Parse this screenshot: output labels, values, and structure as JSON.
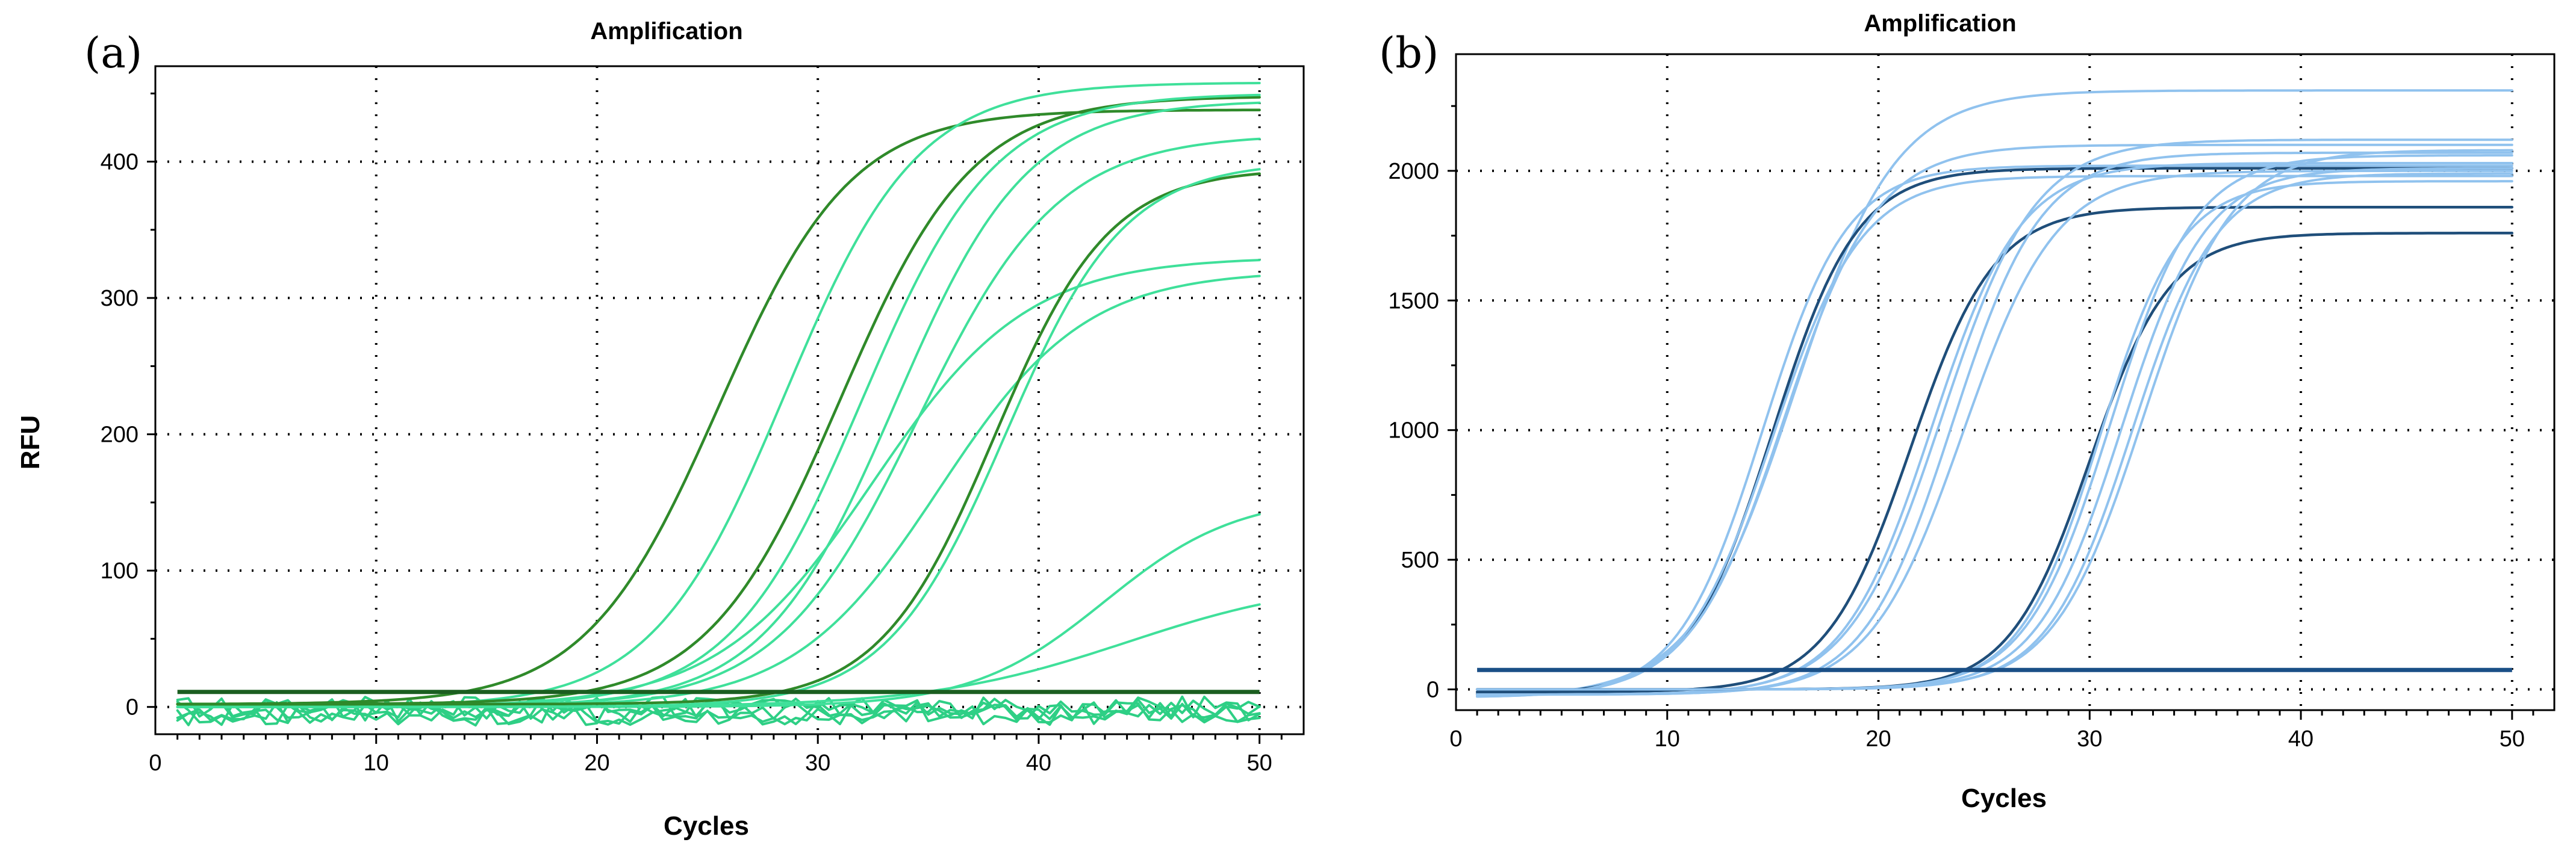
{
  "chart_data": [
    {
      "panel": "(a)",
      "type": "line",
      "title": "Amplification",
      "xlabel": "Cycles",
      "ylabel": "RFU",
      "xlim": [
        0,
        52
      ],
      "ylim": [
        -20,
        470
      ],
      "xticks": [
        0,
        10,
        20,
        30,
        40,
        50
      ],
      "yticks": [
        0,
        100,
        200,
        300,
        400
      ],
      "grid": true,
      "colors": {
        "light": "#3fe09a",
        "dark": "#2f8a2a",
        "baseline": "#1b5e20",
        "noise": "#2ecf85"
      },
      "threshold": 11,
      "series": [
        {
          "name": "curve-1",
          "shade": "dark",
          "base": 2,
          "plateau": 438,
          "midpoint": 25.5,
          "slope": 3.0
        },
        {
          "name": "curve-2",
          "shade": "light",
          "base": 0,
          "plateau": 458,
          "midpoint": 28.5,
          "slope": 3.0
        },
        {
          "name": "curve-3",
          "shade": "dark",
          "base": 2,
          "plateau": 448,
          "midpoint": 31.0,
          "slope": 3.0
        },
        {
          "name": "curve-4",
          "shade": "light",
          "base": 0,
          "plateau": 450,
          "midpoint": 32.0,
          "slope": 3.0
        },
        {
          "name": "curve-5",
          "shade": "light",
          "base": 0,
          "plateau": 445,
          "midpoint": 33.5,
          "slope": 3.0
        },
        {
          "name": "curve-6",
          "shade": "light",
          "base": 0,
          "plateau": 420,
          "midpoint": 34.5,
          "slope": 3.2
        },
        {
          "name": "curve-7",
          "shade": "light",
          "base": 0,
          "plateau": 330,
          "midpoint": 32.5,
          "slope": 3.5
        },
        {
          "name": "curve-8",
          "shade": "light",
          "base": 0,
          "plateau": 320,
          "midpoint": 35.5,
          "slope": 3.3
        },
        {
          "name": "curve-9",
          "shade": "dark",
          "base": 2,
          "plateau": 395,
          "midpoint": 38.0,
          "slope": 2.6
        },
        {
          "name": "curve-10",
          "shade": "light",
          "base": 0,
          "plateau": 400,
          "midpoint": 38.5,
          "slope": 2.7
        },
        {
          "name": "curve-11",
          "shade": "light",
          "base": 0,
          "plateau": 155,
          "midpoint": 43.0,
          "slope": 3.0
        },
        {
          "name": "curve-12",
          "shade": "light",
          "base": 0,
          "plateau": 95,
          "midpoint": 44.0,
          "slope": 4.5
        }
      ],
      "noise_series": 5
    },
    {
      "panel": "(b)",
      "type": "line",
      "title": "Amplification",
      "xlabel": "Cycles",
      "ylabel": "",
      "xlim": [
        0,
        52
      ],
      "ylim": [
        -80,
        2450
      ],
      "xticks": [
        0,
        10,
        20,
        30,
        40,
        50
      ],
      "yticks": [
        0,
        500,
        1000,
        1500,
        2000
      ],
      "grid": true,
      "colors": {
        "light": "#90c2ee",
        "dark": "#1f4e7a",
        "baseline": "#1a4f86",
        "noise": "#6aa8e0"
      },
      "threshold": 75,
      "series": [
        {
          "name": "curve-1",
          "shade": "light",
          "base": -30,
          "plateau": 2310,
          "midpoint": 16.0,
          "slope": 2.4
        },
        {
          "name": "curve-2",
          "shade": "dark",
          "base": -20,
          "plateau": 2010,
          "midpoint": 15.0,
          "slope": 2.0
        },
        {
          "name": "curve-3",
          "shade": "light",
          "base": -30,
          "plateau": 2100,
          "midpoint": 15.5,
          "slope": 2.2
        },
        {
          "name": "curve-4",
          "shade": "light",
          "base": -30,
          "plateau": 2020,
          "midpoint": 14.5,
          "slope": 2.0
        },
        {
          "name": "curve-5",
          "shade": "light",
          "base": -30,
          "plateau": 1980,
          "midpoint": 15.0,
          "slope": 2.1
        },
        {
          "name": "curve-6",
          "shade": "dark",
          "base": -10,
          "plateau": 1860,
          "midpoint": 21.5,
          "slope": 2.0
        },
        {
          "name": "curve-7",
          "shade": "light",
          "base": -20,
          "plateau": 2120,
          "midpoint": 23.0,
          "slope": 2.2
        },
        {
          "name": "curve-8",
          "shade": "light",
          "base": -20,
          "plateau": 2070,
          "midpoint": 23.5,
          "slope": 2.1
        },
        {
          "name": "curve-9",
          "shade": "light",
          "base": -20,
          "plateau": 2030,
          "midpoint": 22.5,
          "slope": 2.1
        },
        {
          "name": "curve-10",
          "shade": "light",
          "base": -20,
          "plateau": 2000,
          "midpoint": 24.0,
          "slope": 2.2
        },
        {
          "name": "curve-11",
          "shade": "dark",
          "base": 0,
          "plateau": 1760,
          "midpoint": 30.0,
          "slope": 1.9
        },
        {
          "name": "curve-12",
          "shade": "light",
          "base": 0,
          "plateau": 2060,
          "midpoint": 31.0,
          "slope": 2.0
        },
        {
          "name": "curve-13",
          "shade": "light",
          "base": 0,
          "plateau": 2010,
          "midpoint": 31.5,
          "slope": 2.0
        },
        {
          "name": "curve-14",
          "shade": "light",
          "base": 0,
          "plateau": 1990,
          "midpoint": 32.0,
          "slope": 2.0
        },
        {
          "name": "curve-15",
          "shade": "light",
          "base": 0,
          "plateau": 1960,
          "midpoint": 30.5,
          "slope": 1.9
        },
        {
          "name": "curve-16",
          "shade": "light",
          "base": 0,
          "plateau": 2080,
          "midpoint": 32.5,
          "slope": 2.1
        }
      ],
      "noise_series": 0
    }
  ]
}
